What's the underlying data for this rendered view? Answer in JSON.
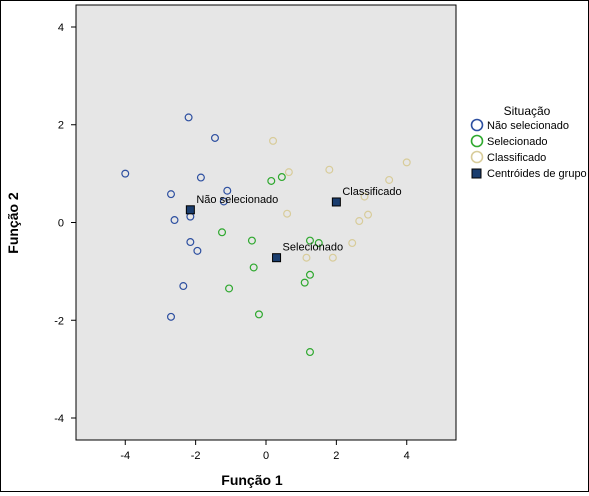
{
  "chart_data": {
    "type": "scatter",
    "title": "",
    "xlabel": "Função 1",
    "ylabel": "Função 2",
    "xlim": [
      -5.4,
      5.4
    ],
    "ylim": [
      -4.45,
      4.45
    ],
    "xticks": [
      -4,
      -2,
      0,
      2,
      4
    ],
    "yticks": [
      -4,
      -2,
      0,
      2,
      4
    ],
    "grid": false,
    "legend_title": "Situação",
    "legend_position": "right",
    "series": [
      {
        "name": "Não selecionado",
        "marker": "circle",
        "color": "#2d4fa0",
        "points": [
          [
            -2.2,
            2.15
          ],
          [
            -1.45,
            1.73
          ],
          [
            -4.0,
            1.0
          ],
          [
            -1.85,
            0.92
          ],
          [
            -2.7,
            0.58
          ],
          [
            -1.1,
            0.65
          ],
          [
            -1.2,
            0.43
          ],
          [
            -2.6,
            0.05
          ],
          [
            -2.15,
            0.12
          ],
          [
            -2.15,
            -0.4
          ],
          [
            -1.95,
            -0.58
          ],
          [
            -2.35,
            -1.3
          ],
          [
            -2.7,
            -1.93
          ]
        ]
      },
      {
        "name": "Selecionado",
        "marker": "circle",
        "color": "#2ea82e",
        "points": [
          [
            0.15,
            0.85
          ],
          [
            0.45,
            0.93
          ],
          [
            -1.25,
            -0.2
          ],
          [
            -0.4,
            -0.37
          ],
          [
            1.25,
            -0.37
          ],
          [
            1.5,
            -0.42
          ],
          [
            -0.35,
            -0.92
          ],
          [
            1.25,
            -1.07
          ],
          [
            1.1,
            -1.23
          ],
          [
            -1.05,
            -1.35
          ],
          [
            -0.2,
            -1.88
          ],
          [
            1.25,
            -2.65
          ]
        ]
      },
      {
        "name": "Classificado",
        "marker": "circle",
        "color": "#d8cc9a",
        "points": [
          [
            0.2,
            1.67
          ],
          [
            0.65,
            1.03
          ],
          [
            1.8,
            1.08
          ],
          [
            4.0,
            1.23
          ],
          [
            3.5,
            0.87
          ],
          [
            2.8,
            0.53
          ],
          [
            0.6,
            0.18
          ],
          [
            2.9,
            0.16
          ],
          [
            2.65,
            0.03
          ],
          [
            2.45,
            -0.42
          ],
          [
            1.15,
            -0.72
          ],
          [
            1.9,
            -0.72
          ]
        ]
      },
      {
        "name": "Centróides de grupo",
        "marker": "square",
        "color": "#1a3d6e",
        "points": [
          [
            -2.15,
            0.26
          ],
          [
            0.3,
            -0.72
          ],
          [
            2.0,
            0.42
          ]
        ],
        "labels": [
          "Não selecionado",
          "Selecionado",
          "Classificado"
        ]
      }
    ]
  }
}
